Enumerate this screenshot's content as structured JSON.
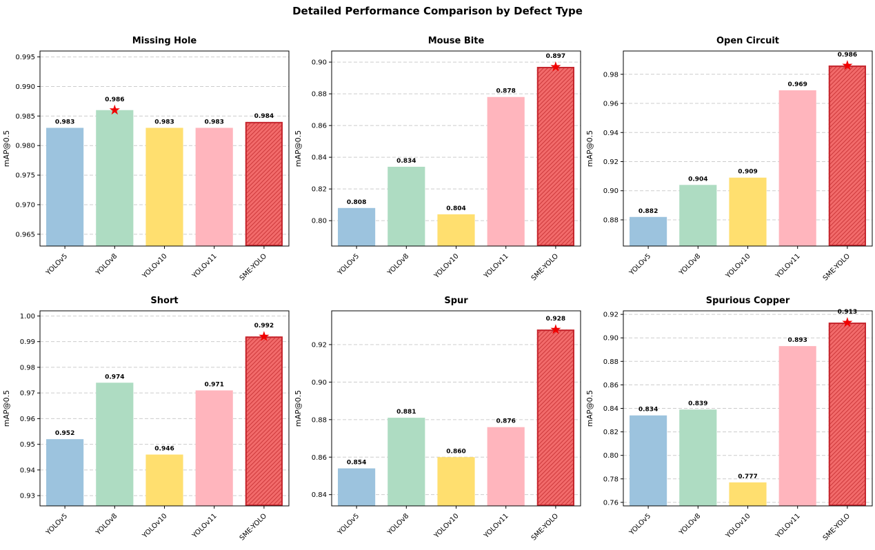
{
  "figure": {
    "title": "Detailed Performance Comparison by Defect Type",
    "ylabel": "mAP@0.5",
    "categories": [
      "YOLOv5",
      "YOLOv8",
      "YOLOv10",
      "YOLOv11",
      "SME-YOLO"
    ],
    "styles": {
      "bar_colors": [
        "#9CC3DE",
        "#AEDCC2",
        "#FFDF6F",
        "#FFB5BD",
        "#F26B6B"
      ],
      "sme_edge_color": "#C5262E",
      "sme_hatch_color": "#CE3A3C",
      "star_color": "#F00000",
      "grid_color": "#CCCCCC",
      "spine_color": "#000000",
      "background": "#FFFFFF"
    }
  },
  "chart_data": [
    {
      "type": "bar",
      "title": "Missing Hole",
      "xlabel": "",
      "ylabel": "mAP@0.5",
      "categories": [
        "YOLOv5",
        "YOLOv8",
        "YOLOv10",
        "YOLOv11",
        "SME-YOLO"
      ],
      "values": [
        0.983,
        0.986,
        0.983,
        0.983,
        0.984
      ],
      "value_labels": [
        "0.983",
        "0.986",
        "0.983",
        "0.983",
        "0.984"
      ],
      "best_index": 1,
      "ylim": [
        0.963,
        0.996
      ],
      "yticks": [
        0.965,
        0.97,
        0.975,
        0.98,
        0.985,
        0.99,
        0.995
      ],
      "tick_decimals": 3,
      "grid": true,
      "legend": "none"
    },
    {
      "type": "bar",
      "title": "Mouse Bite",
      "xlabel": "",
      "ylabel": "mAP@0.5",
      "categories": [
        "YOLOv5",
        "YOLOv8",
        "YOLOv10",
        "YOLOv11",
        "SME-YOLO"
      ],
      "values": [
        0.808,
        0.834,
        0.804,
        0.878,
        0.897
      ],
      "value_labels": [
        "0.808",
        "0.834",
        "0.804",
        "0.878",
        "0.897"
      ],
      "best_index": 4,
      "ylim": [
        0.784,
        0.907
      ],
      "yticks": [
        0.8,
        0.82,
        0.84,
        0.86,
        0.88,
        0.9
      ],
      "tick_decimals": 2,
      "grid": true,
      "legend": "none"
    },
    {
      "type": "bar",
      "title": "Open Circuit",
      "xlabel": "",
      "ylabel": "mAP@0.5",
      "categories": [
        "YOLOv5",
        "YOLOv8",
        "YOLOv10",
        "YOLOv11",
        "SME-YOLO"
      ],
      "values": [
        0.882,
        0.904,
        0.909,
        0.969,
        0.986
      ],
      "value_labels": [
        "0.882",
        "0.904",
        "0.909",
        "0.969",
        "0.986"
      ],
      "best_index": 4,
      "ylim": [
        0.862,
        0.996
      ],
      "yticks": [
        0.88,
        0.9,
        0.92,
        0.94,
        0.96,
        0.98
      ],
      "tick_decimals": 2,
      "grid": true,
      "legend": "none"
    },
    {
      "type": "bar",
      "title": "Short",
      "xlabel": "",
      "ylabel": "mAP@0.5",
      "categories": [
        "YOLOv5",
        "YOLOv8",
        "YOLOv10",
        "YOLOv11",
        "SME-YOLO"
      ],
      "values": [
        0.952,
        0.974,
        0.946,
        0.971,
        0.992
      ],
      "value_labels": [
        "0.952",
        "0.974",
        "0.946",
        "0.971",
        "0.992"
      ],
      "best_index": 4,
      "ylim": [
        0.926,
        1.002
      ],
      "yticks": [
        0.93,
        0.94,
        0.95,
        0.96,
        0.97,
        0.98,
        0.99,
        1.0
      ],
      "tick_decimals": 2,
      "grid": true,
      "legend": "none"
    },
    {
      "type": "bar",
      "title": "Spur",
      "xlabel": "",
      "ylabel": "mAP@0.5",
      "categories": [
        "YOLOv5",
        "YOLOv8",
        "YOLOv10",
        "YOLOv11",
        "SME-YOLO"
      ],
      "values": [
        0.854,
        0.881,
        0.86,
        0.876,
        0.928
      ],
      "value_labels": [
        "0.854",
        "0.881",
        "0.860",
        "0.876",
        "0.928"
      ],
      "best_index": 4,
      "ylim": [
        0.834,
        0.938
      ],
      "yticks": [
        0.84,
        0.86,
        0.88,
        0.9,
        0.92
      ],
      "tick_decimals": 2,
      "grid": true,
      "legend": "none"
    },
    {
      "type": "bar",
      "title": "Spurious Copper",
      "xlabel": "",
      "ylabel": "mAP@0.5",
      "categories": [
        "YOLOv5",
        "YOLOv8",
        "YOLOv10",
        "YOLOv11",
        "SME-YOLO"
      ],
      "values": [
        0.834,
        0.839,
        0.777,
        0.893,
        0.913
      ],
      "value_labels": [
        "0.834",
        "0.839",
        "0.777",
        "0.893",
        "0.913"
      ],
      "best_index": 4,
      "ylim": [
        0.757,
        0.923
      ],
      "yticks": [
        0.76,
        0.78,
        0.8,
        0.82,
        0.84,
        0.86,
        0.88,
        0.9,
        0.92
      ],
      "tick_decimals": 2,
      "grid": true,
      "legend": "none"
    }
  ]
}
